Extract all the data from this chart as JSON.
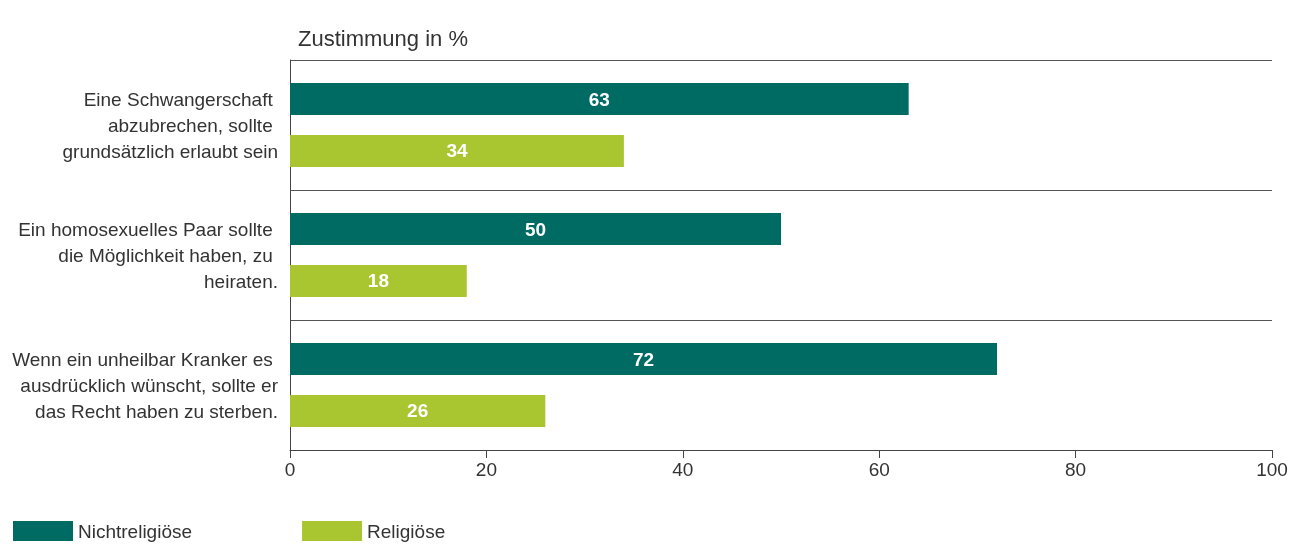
{
  "chart_data": {
    "type": "bar",
    "orientation": "horizontal",
    "title": "Zustimmung in %",
    "categories": [
      "Eine Schwangerschaft abzubrechen, sollte grundsätzlich erlaubt sein",
      "Ein homosexuelles Paar sollte die Möglichkeit haben, zu heiraten.",
      "Wenn ein unheilbar Kranker es ausdrücklich wünscht, sollte er das Recht haben zu sterben."
    ],
    "series": [
      {
        "name": "Nichtreligiöse",
        "color": "#006b63",
        "values": [
          63,
          50,
          72
        ]
      },
      {
        "name": "Religiöse",
        "color": "#a9c52f",
        "values": [
          34,
          18,
          26
        ]
      }
    ],
    "xlim": [
      0,
      100
    ],
    "xticks": [
      0,
      20,
      40,
      60,
      80,
      100
    ],
    "grid": "y",
    "legend": "bottom left",
    "data_labels": true
  }
}
